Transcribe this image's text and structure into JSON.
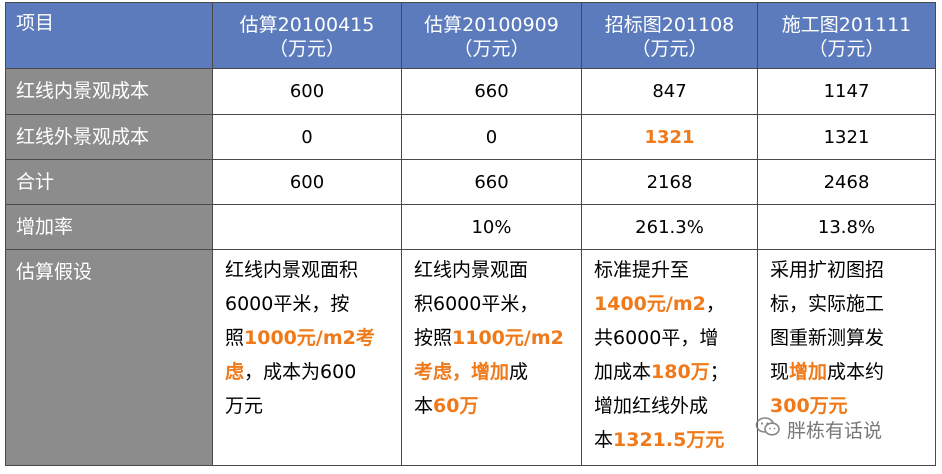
{
  "table": {
    "headers": [
      {
        "line1": "项目",
        "line2": ""
      },
      {
        "line1": "估算20100415",
        "line2": "（万元）"
      },
      {
        "line1": "估算20100909",
        "line2": "（万元）"
      },
      {
        "line1": "招标图201108",
        "line2": "（万元）"
      },
      {
        "line1": "施工图201111",
        "line2": "（万元）"
      }
    ],
    "rows": [
      {
        "label": "红线内景观成本",
        "values": [
          "600",
          "660",
          "847",
          "1147"
        ]
      },
      {
        "label": "红线外景观成本",
        "values": [
          "0",
          "0",
          "1321",
          "1321"
        ]
      },
      {
        "label": "合计",
        "values": [
          "600",
          "660",
          "2168",
          "2468"
        ]
      },
      {
        "label": "增加率",
        "values": [
          "",
          "10%",
          "261.3%",
          "13.8%"
        ]
      }
    ],
    "assumption": {
      "label": "估算假设",
      "col1": [
        "红线内景观面积",
        "6000平米，按",
        "照",
        "1000元/m2考",
        "虑",
        "，成本为600",
        "万元"
      ],
      "col2": [
        "红线内景观面",
        "积6000平米，",
        "按照",
        "1100元/m2",
        "考虑，增加",
        "成",
        "本",
        "60万"
      ],
      "col3": [
        "标准提升至",
        "1400元/m2",
        "，",
        "共6000平，增",
        "加成本",
        "180万",
        "；",
        "增加红线外成",
        "本",
        "1321.5万元"
      ],
      "col4": [
        "采用扩初图招",
        "标，实际施工",
        "图重新测算发",
        "现",
        "增加",
        "成本约",
        "300万元"
      ]
    }
  },
  "colors": {
    "header_bg": "#5b7bbd",
    "label_bg": "#8c8c8c",
    "highlight": "#f07a1a"
  },
  "watermark": {
    "text": "胖栋有话说",
    "icon": "wechat-icon"
  }
}
